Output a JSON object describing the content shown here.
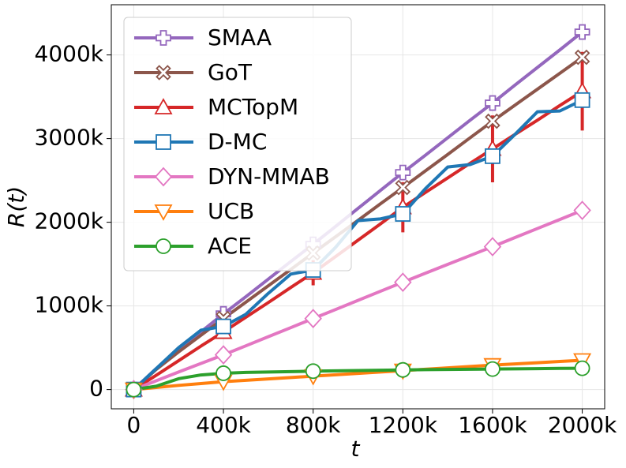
{
  "chart_data": {
    "type": "line",
    "xlabel": "t",
    "ylabel": "R(t)",
    "x": [
      0,
      100000,
      200000,
      300000,
      400000,
      500000,
      600000,
      700000,
      800000,
      900000,
      1000000,
      1100000,
      1200000,
      1300000,
      1400000,
      1500000,
      1600000,
      1700000,
      1800000,
      1900000,
      2000000
    ],
    "markevery": 4,
    "series": [
      {
        "name": "SMAA",
        "color": "#9467bd",
        "marker": "plus",
        "values": [
          0,
          250000,
          470000,
          690000,
          905000,
          1110000,
          1320000,
          1530000,
          1736000,
          1950000,
          2165000,
          2380000,
          2594000,
          2800000,
          3010000,
          3220000,
          3425000,
          3640000,
          3850000,
          4060000,
          4274000
        ]
      },
      {
        "name": "GoT",
        "color": "#8c564b",
        "marker": "x",
        "values": [
          0,
          240000,
          450000,
          650000,
          850000,
          1045000,
          1240000,
          1435000,
          1632000,
          1827000,
          2022000,
          2220000,
          2415000,
          2613000,
          2810000,
          3010000,
          3208000,
          3400000,
          3590000,
          3780000,
          3972000
        ]
      },
      {
        "name": "MCTopM",
        "color": "#d62728",
        "marker": "triangle-up",
        "values": [
          0,
          170000,
          345000,
          520000,
          689000,
          865000,
          1040000,
          1220000,
          1396000,
          1590000,
          1785000,
          1980000,
          2179000,
          2355000,
          2530000,
          2705000,
          2877000,
          3050000,
          3220000,
          3395000,
          3566000
        ],
        "errors": [
          null,
          null,
          null,
          null,
          60000,
          null,
          null,
          null,
          150000,
          null,
          null,
          null,
          300000,
          null,
          null,
          null,
          400000,
          null,
          null,
          null,
          470000
        ]
      },
      {
        "name": "D-MC",
        "color": "#1f77b4",
        "marker": "square",
        "values": [
          0,
          250000,
          500000,
          710000,
          755000,
          900000,
          1150000,
          1380000,
          1430000,
          1700000,
          2020000,
          2040000,
          2100000,
          2400000,
          2660000,
          2690000,
          2790000,
          3050000,
          3320000,
          3330000,
          3460000
        ]
      },
      {
        "name": "DYN-MMAB",
        "color": "#e377c2",
        "marker": "diamond",
        "values": [
          0,
          105000,
          210000,
          312000,
          415000,
          523000,
          632000,
          740000,
          849000,
          957000,
          1066000,
          1175000,
          1283000,
          1390000,
          1496000,
          1602000,
          1708000,
          1817000,
          1925000,
          2033000,
          2142000
        ]
      },
      {
        "name": "UCB",
        "color": "#ff7f0e",
        "marker": "triangle-down",
        "values": [
          0,
          25000,
          50000,
          72000,
          94000,
          111000,
          127000,
          144000,
          160000,
          177000,
          193000,
          210000,
          226000,
          243000,
          259000,
          276000,
          292000,
          307000,
          321000,
          336000,
          350000
        ]
      },
      {
        "name": "ACE",
        "color": "#2ca02c",
        "marker": "circle",
        "values": [
          0,
          40000,
          130000,
          175000,
          195000,
          205000,
          210000,
          215000,
          220000,
          224000,
          228000,
          231000,
          235000,
          238000,
          240000,
          243000,
          245000,
          248000,
          250000,
          253000,
          255000
        ]
      }
    ],
    "xlim": [
      -100000,
      2100000
    ],
    "ylim": [
      -230000,
      4600000
    ],
    "xticks": [
      0,
      {
        "value": 400000,
        "label": "400k"
      },
      {
        "value": 800000,
        "label": "800k"
      },
      {
        "value": 1200000,
        "label": "1200k"
      },
      {
        "value": 1600000,
        "label": "1600k"
      },
      {
        "value": 2000000,
        "label": "2000k"
      }
    ],
    "yticks": [
      0,
      {
        "value": 1000000,
        "label": "1000k"
      },
      {
        "value": 2000000,
        "label": "2000k"
      },
      {
        "value": 3000000,
        "label": "3000k"
      },
      {
        "value": 4000000,
        "label": "4000k"
      }
    ],
    "grid": true,
    "legend": "upper left"
  }
}
